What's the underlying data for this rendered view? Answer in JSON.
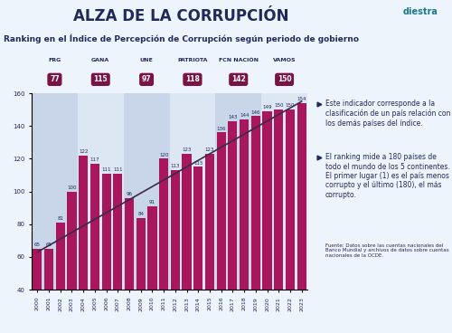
{
  "chart_data": {
    "type": "bar",
    "title": "ALZA DE LA CORRUPCIÓN",
    "subtitle": "Ranking en el Índice de Percepción de Corrupción según periodo de gobierno",
    "brand": "diestra",
    "categories": [
      "2000",
      "2001",
      "2002",
      "2003",
      "2004",
      "2005",
      "2006",
      "2007",
      "2008",
      "2009",
      "2010",
      "2011",
      "2012",
      "2013",
      "2014",
      "2015",
      "2016",
      "2017",
      "2018",
      "2019",
      "2020",
      "2021",
      "2022",
      "2023"
    ],
    "values": [
      65,
      65,
      81,
      100,
      122,
      117,
      111,
      111,
      96,
      84,
      91,
      120,
      113,
      123,
      115,
      123,
      136,
      143,
      144,
      146,
      149,
      150,
      150,
      154
    ],
    "color": "#a8175e",
    "data_labels": true,
    "ylim": [
      40,
      160
    ],
    "yticks": [
      40,
      60,
      80,
      100,
      120,
      140,
      160
    ],
    "grid": false,
    "trend_line": {
      "start": 63,
      "end": 155
    },
    "periods": [
      {
        "party": "FRG",
        "average": 77,
        "start": "2000",
        "end": "2003"
      },
      {
        "party": "GANA",
        "average": 115,
        "start": "2004",
        "end": "2007"
      },
      {
        "party": "UNE",
        "average": 97,
        "start": "2008",
        "end": "2011"
      },
      {
        "party": "PATRIOTA",
        "average": 118,
        "start": "2012",
        "end": "2015"
      },
      {
        "party": "FCN NACIÓN",
        "average": 142,
        "start": "2016",
        "end": "2019"
      },
      {
        "party": "VAMOS",
        "average": 150,
        "start": "2020",
        "end": "2023"
      }
    ],
    "notes": [
      "Este indicador corresponde a la clasificación de un país relación con los demás países del índice.",
      "El ranking mide a 180 países de todo el mundo de los 5 continentes. El primer lugar (1) es el país menos corrupto y el último (180), el más corrupto."
    ],
    "source": "Fuente: Datos sobre las cuentas nacionales del Banco Mundial y archivos de datos sobre cuentas nacionales de la OCDE."
  }
}
